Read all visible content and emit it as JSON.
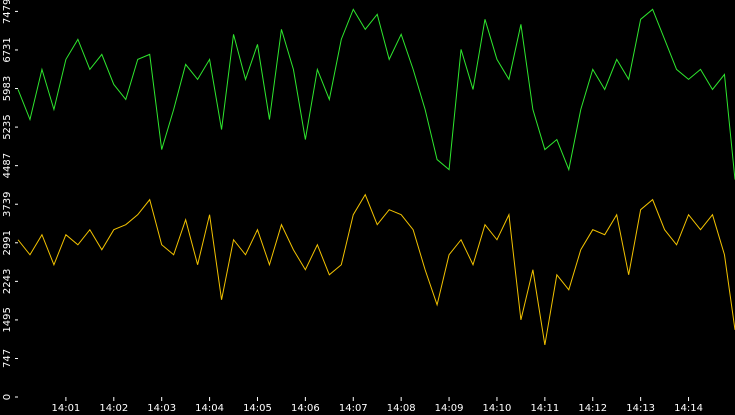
{
  "chart_data": {
    "type": "line",
    "x": [
      0,
      0.25,
      0.5,
      0.75,
      1,
      1.25,
      1.5,
      1.75,
      2,
      2.25,
      2.5,
      2.75,
      3,
      3.25,
      3.5,
      3.75,
      4,
      4.25,
      4.5,
      4.75,
      5,
      5.25,
      5.5,
      5.75,
      6,
      6.25,
      6.5,
      6.75,
      7,
      7.25,
      7.5,
      7.75,
      8,
      8.25,
      8.5,
      8.75,
      9,
      9.25,
      9.5,
      9.75,
      10,
      10.25,
      10.5,
      10.75,
      11,
      11.25,
      11.5,
      11.75,
      12,
      12.25,
      12.5,
      12.75,
      13,
      13.25,
      13.5,
      13.75,
      14,
      14.25,
      14.5,
      14.75,
      14.97
    ],
    "series": [
      {
        "color": "#2ee62e",
        "values": [
          5965,
          5382,
          6354,
          5576,
          6548,
          6937,
          6354,
          6645,
          6062,
          5771,
          6548,
          6645,
          4799,
          5576,
          6451,
          6160,
          6548,
          5188,
          7034,
          6160,
          6839,
          5382,
          7131,
          6354,
          4994,
          6354,
          5771,
          6937,
          7519,
          7131,
          7422,
          6548,
          7034,
          6354,
          5576,
          4605,
          4411,
          6742,
          5965,
          7325,
          6548,
          6160,
          7228,
          5576,
          4799,
          4994,
          4411,
          5576,
          6354,
          5965,
          6548,
          6160,
          7325,
          7519,
          6937,
          6354,
          6160,
          6354,
          5965,
          6257,
          4216
        ]
      },
      {
        "color": "#f2c200",
        "values": [
          3050,
          2759,
          3148,
          2565,
          3148,
          2953,
          3245,
          2856,
          3245,
          3342,
          3536,
          3828,
          2953,
          2759,
          3439,
          2565,
          3536,
          1885,
          3050,
          2759,
          3245,
          2565,
          3342,
          2856,
          2468,
          2953,
          2370,
          2565,
          3536,
          3925,
          3342,
          3633,
          3536,
          3245,
          2468,
          1788,
          2759,
          3050,
          2565,
          3342,
          3050,
          3536,
          1496,
          2468,
          1010,
          2370,
          2079,
          2856,
          3245,
          3148,
          3536,
          2370,
          3633,
          3828,
          3245,
          2953,
          3536,
          3245,
          3536,
          2759,
          1302
        ]
      }
    ],
    "xlim": [
      0,
      14.97
    ],
    "xticks": [
      {
        "value": 1,
        "label": "14:01"
      },
      {
        "value": 2,
        "label": "14:02"
      },
      {
        "value": 3,
        "label": "14:03"
      },
      {
        "value": 4,
        "label": "14:04"
      },
      {
        "value": 5,
        "label": "14:05"
      },
      {
        "value": 6,
        "label": "14:06"
      },
      {
        "value": 7,
        "label": "14:07"
      },
      {
        "value": 8,
        "label": "14:08"
      },
      {
        "value": 9,
        "label": "14:09"
      },
      {
        "value": 10,
        "label": "14:10"
      },
      {
        "value": 11,
        "label": "14:11"
      },
      {
        "value": 12,
        "label": "14:12"
      },
      {
        "value": 13,
        "label": "14:13"
      },
      {
        "value": 14,
        "label": "14:14"
      }
    ],
    "ylim": [
      0,
      7700
    ],
    "yticks": [
      0,
      747,
      1495,
      2243,
      2991,
      3739,
      4487,
      5235,
      5983,
      6731,
      7479
    ]
  }
}
